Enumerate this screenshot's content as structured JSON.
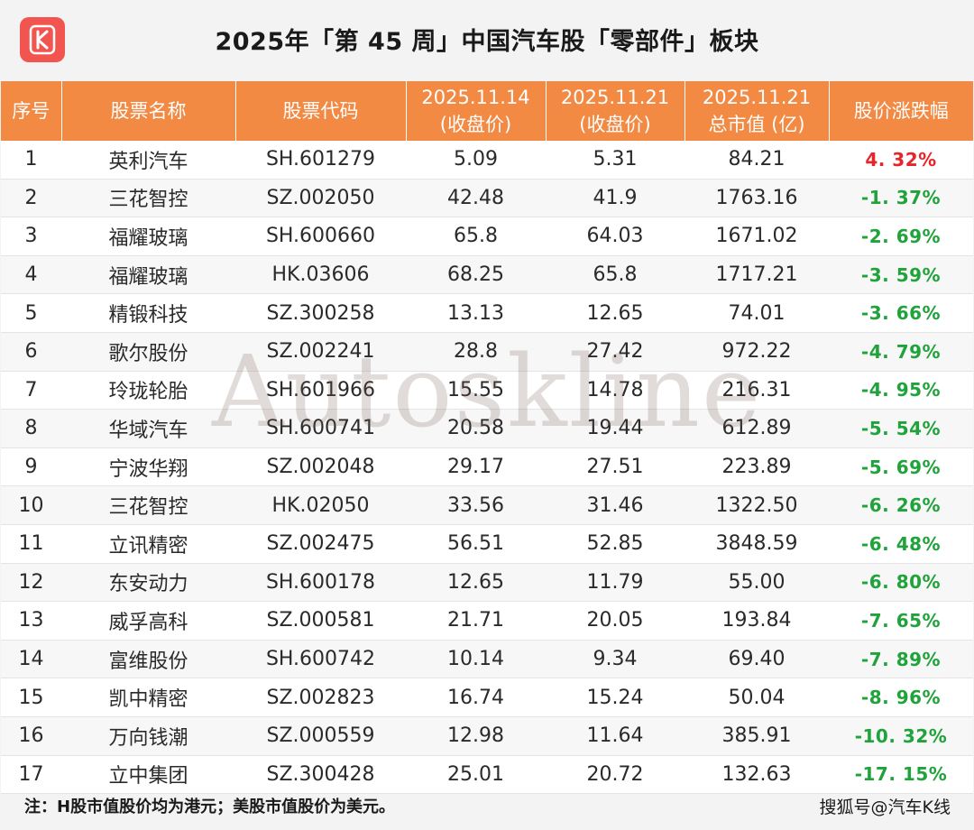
{
  "title": "2025年「第 45 周」中国汽车股「零部件」板块",
  "watermark": "Autoskline",
  "colors": {
    "header_bg": "#f28a44",
    "up": "#e8242a",
    "down": "#1fa33a",
    "logo_bg": "#f2554f"
  },
  "logo": {
    "icon": "k-logo-icon"
  },
  "table": {
    "headers": [
      {
        "line1": "序号",
        "line2": ""
      },
      {
        "line1": "股票名称",
        "line2": ""
      },
      {
        "line1": "股票代码",
        "line2": ""
      },
      {
        "line1": "2025.11.14",
        "line2": "(收盘价)"
      },
      {
        "line1": "2025.11.21",
        "line2": "(收盘价)"
      },
      {
        "line1": "2025.11.21",
        "line2": "总市值 (亿)"
      },
      {
        "line1": "股价涨跌幅",
        "line2": ""
      }
    ],
    "rows": [
      {
        "no": "1",
        "name": "英利汽车",
        "code": "SH.601279",
        "close_prev": "5.09",
        "close_curr": "5.31",
        "mktcap": "84.21",
        "change": "4. 32%",
        "dir": "up"
      },
      {
        "no": "2",
        "name": "三花智控",
        "code": "SZ.002050",
        "close_prev": "42.48",
        "close_curr": "41.9",
        "mktcap": "1763.16",
        "change": "-1. 37%",
        "dir": "down"
      },
      {
        "no": "3",
        "name": "福耀玻璃",
        "code": "SH.600660",
        "close_prev": "65.8",
        "close_curr": "64.03",
        "mktcap": "1671.02",
        "change": "-2. 69%",
        "dir": "down"
      },
      {
        "no": "4",
        "name": "福耀玻璃",
        "code": "HK.03606",
        "close_prev": "68.25",
        "close_curr": "65.8",
        "mktcap": "1717.21",
        "change": "-3. 59%",
        "dir": "down"
      },
      {
        "no": "5",
        "name": "精锻科技",
        "code": "SZ.300258",
        "close_prev": "13.13",
        "close_curr": "12.65",
        "mktcap": "74.01",
        "change": "-3. 66%",
        "dir": "down"
      },
      {
        "no": "6",
        "name": "歌尔股份",
        "code": "SZ.002241",
        "close_prev": "28.8",
        "close_curr": "27.42",
        "mktcap": "972.22",
        "change": "-4. 79%",
        "dir": "down"
      },
      {
        "no": "7",
        "name": "玲珑轮胎",
        "code": "SH.601966",
        "close_prev": "15.55",
        "close_curr": "14.78",
        "mktcap": "216.31",
        "change": "-4. 95%",
        "dir": "down"
      },
      {
        "no": "8",
        "name": "华域汽车",
        "code": "SH.600741",
        "close_prev": "20.58",
        "close_curr": "19.44",
        "mktcap": "612.89",
        "change": "-5. 54%",
        "dir": "down"
      },
      {
        "no": "9",
        "name": "宁波华翔",
        "code": "SZ.002048",
        "close_prev": "29.17",
        "close_curr": "27.51",
        "mktcap": "223.89",
        "change": "-5. 69%",
        "dir": "down"
      },
      {
        "no": "10",
        "name": "三花智控",
        "code": "HK.02050",
        "close_prev": "33.56",
        "close_curr": "31.46",
        "mktcap": "1322.50",
        "change": "-6. 26%",
        "dir": "down"
      },
      {
        "no": "11",
        "name": "立讯精密",
        "code": "SZ.002475",
        "close_prev": "56.51",
        "close_curr": "52.85",
        "mktcap": "3848.59",
        "change": "-6. 48%",
        "dir": "down"
      },
      {
        "no": "12",
        "name": "东安动力",
        "code": "SH.600178",
        "close_prev": "12.65",
        "close_curr": "11.79",
        "mktcap": "55.00",
        "change": "-6. 80%",
        "dir": "down"
      },
      {
        "no": "13",
        "name": "威孚高科",
        "code": "SZ.000581",
        "close_prev": "21.71",
        "close_curr": "20.05",
        "mktcap": "193.84",
        "change": "-7. 65%",
        "dir": "down"
      },
      {
        "no": "14",
        "name": "富维股份",
        "code": "SH.600742",
        "close_prev": "10.14",
        "close_curr": "9.34",
        "mktcap": "69.40",
        "change": "-7. 89%",
        "dir": "down"
      },
      {
        "no": "15",
        "name": "凯中精密",
        "code": "SZ.002823",
        "close_prev": "16.74",
        "close_curr": "15.24",
        "mktcap": "50.04",
        "change": "-8. 96%",
        "dir": "down"
      },
      {
        "no": "16",
        "name": "万向钱潮",
        "code": "SZ.000559",
        "close_prev": "12.98",
        "close_curr": "11.64",
        "mktcap": "385.91",
        "change": "-10. 32%",
        "dir": "down"
      },
      {
        "no": "17",
        "name": "立中集团",
        "code": "SZ.300428",
        "close_prev": "25.01",
        "close_curr": "20.72",
        "mktcap": "132.63",
        "change": "-17. 15%",
        "dir": "down"
      }
    ]
  },
  "footer": {
    "note": "注：H股市值股价均为港元；美股市值股价为美元。",
    "source": "搜狐号@汽车K线"
  }
}
